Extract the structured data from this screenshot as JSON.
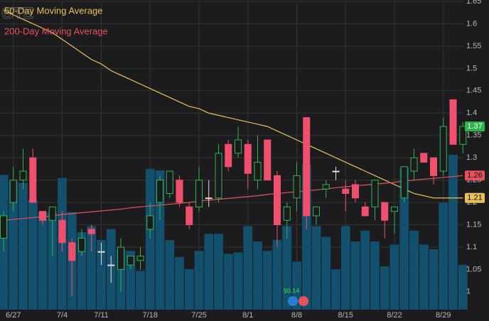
{
  "chart_data": {
    "type": "candlestick",
    "watermark": "GTE",
    "categories": [
      null,
      "6/27",
      null,
      null,
      null,
      null,
      "7/4",
      null,
      null,
      null,
      "7/11",
      null,
      null,
      null,
      null,
      "7/18",
      null,
      null,
      null,
      null,
      "7/25",
      null,
      null,
      null,
      null,
      "8/1",
      null,
      null,
      null,
      null,
      "8/8",
      null,
      null,
      null,
      null,
      "8/15",
      null,
      null,
      null,
      null,
      "8/22",
      null,
      null,
      null,
      null,
      "8/29",
      null,
      null
    ],
    "open": [
      1.12,
      1.2,
      1.25,
      1.3,
      1.18,
      1.16,
      1.16,
      1.11,
      1.09,
      1.14,
      1.09,
      1.06,
      1.05,
      1.06,
      1.07,
      1.14,
      1.2,
      1.22,
      1.25,
      1.19,
      1.19,
      1.21,
      1.21,
      1.33,
      1.31,
      1.33,
      1.25,
      1.34,
      1.26,
      1.16,
      1.21,
      1.39,
      1.17,
      1.23,
      1.27,
      1.23,
      1.24,
      1.19,
      1.19,
      1.2,
      1.18,
      1.21,
      1.27,
      1.31,
      1.3,
      1.27,
      1.43,
      1.33
    ],
    "high": [
      1.18,
      1.28,
      1.32,
      1.32,
      1.18,
      1.19,
      1.18,
      1.12,
      1.14,
      1.15,
      1.11,
      1.08,
      1.12,
      1.08,
      1.1,
      1.2,
      1.26,
      1.27,
      1.26,
      1.2,
      1.28,
      1.25,
      1.33,
      1.34,
      1.37,
      1.34,
      1.35,
      1.34,
      1.27,
      1.2,
      1.29,
      1.39,
      1.19,
      1.25,
      1.28,
      1.25,
      1.25,
      1.2,
      1.25,
      1.2,
      1.19,
      1.28,
      1.32,
      1.31,
      1.3,
      1.39,
      1.43,
      1.38
    ],
    "low": [
      1.09,
      1.18,
      1.23,
      1.2,
      1.15,
      1.08,
      1.09,
      0.99,
      1.08,
      1.09,
      1.06,
      1.02,
      1.0,
      1.05,
      1.05,
      1.12,
      1.16,
      1.21,
      1.19,
      1.14,
      1.18,
      1.19,
      1.2,
      1.27,
      1.3,
      1.23,
      1.23,
      1.25,
      1.1,
      1.12,
      1.18,
      1.14,
      1.15,
      1.21,
      1.25,
      1.18,
      1.2,
      1.17,
      1.16,
      1.12,
      1.13,
      1.2,
      1.25,
      1.29,
      1.24,
      1.26,
      1.33,
      1.31
    ],
    "close": [
      1.17,
      1.25,
      1.27,
      1.2,
      1.16,
      1.19,
      1.11,
      1.07,
      1.12,
      1.13,
      1.09,
      1.06,
      1.1,
      1.08,
      1.08,
      1.17,
      1.25,
      1.27,
      1.2,
      1.15,
      1.25,
      1.21,
      1.31,
      1.28,
      1.34,
      1.265,
      1.29,
      1.25,
      1.15,
      1.19,
      1.26,
      1.17,
      1.19,
      1.24,
      1.27,
      1.22,
      1.21,
      1.17,
      1.25,
      1.16,
      1.19,
      1.28,
      1.3,
      1.29,
      1.26,
      1.37,
      1.33,
      1.37
    ],
    "up_color": "#2fb34f",
    "down_color": "#f0506e",
    "volume": {
      "color": "#12506e",
      "ylim": [
        0,
        100
      ],
      "values": [
        87,
        83,
        82,
        71,
        63,
        63,
        85,
        63,
        50,
        54,
        45,
        52,
        39,
        38,
        25,
        91,
        90,
        45,
        34,
        26,
        38,
        49,
        49,
        36,
        37,
        54,
        44,
        38,
        45,
        54,
        31,
        94,
        54,
        47,
        26,
        54,
        44,
        51,
        44,
        28,
        42,
        92,
        51,
        42,
        39,
        69,
        100,
        29
      ]
    },
    "moving_averages": [
      {
        "name": "50-Day Moving Average",
        "color": "#e8c15a",
        "values": [
          1.63,
          1.62,
          1.61,
          1.6,
          1.59,
          1.58,
          1.565,
          1.55,
          1.535,
          1.52,
          1.51,
          1.495,
          1.485,
          1.475,
          1.465,
          1.455,
          1.445,
          1.435,
          1.425,
          1.415,
          1.41,
          1.4,
          1.395,
          1.39,
          1.385,
          1.38,
          1.375,
          1.37,
          1.36,
          1.35,
          1.34,
          1.33,
          1.32,
          1.31,
          1.3,
          1.29,
          1.28,
          1.27,
          1.26,
          1.25,
          1.24,
          1.23,
          1.22,
          1.215,
          1.21,
          1.21,
          1.21,
          1.21
        ]
      },
      {
        "name": "200-Day Moving Average",
        "color": "#e8505e",
        "values": [
          1.16,
          1.162,
          1.164,
          1.166,
          1.168,
          1.17,
          1.173,
          1.175,
          1.177,
          1.179,
          1.181,
          1.183,
          1.185,
          1.188,
          1.19,
          1.192,
          1.194,
          1.196,
          1.198,
          1.2,
          1.203,
          1.205,
          1.207,
          1.209,
          1.211,
          1.213,
          1.215,
          1.218,
          1.22,
          1.222,
          1.224,
          1.226,
          1.228,
          1.23,
          1.233,
          1.235,
          1.237,
          1.239,
          1.241,
          1.243,
          1.245,
          1.248,
          1.25,
          1.252,
          1.254,
          1.256,
          1.258,
          1.26
        ]
      }
    ],
    "annotation": "$0.14",
    "ylim": [
      0.96,
      1.65
    ],
    "yticks": [
      1,
      1.05,
      1.1,
      1.15,
      1.2,
      1.25,
      1.3,
      1.35,
      1.4,
      1.45,
      1.5,
      1.55,
      1.6,
      1.65
    ],
    "grid": true
  }
}
